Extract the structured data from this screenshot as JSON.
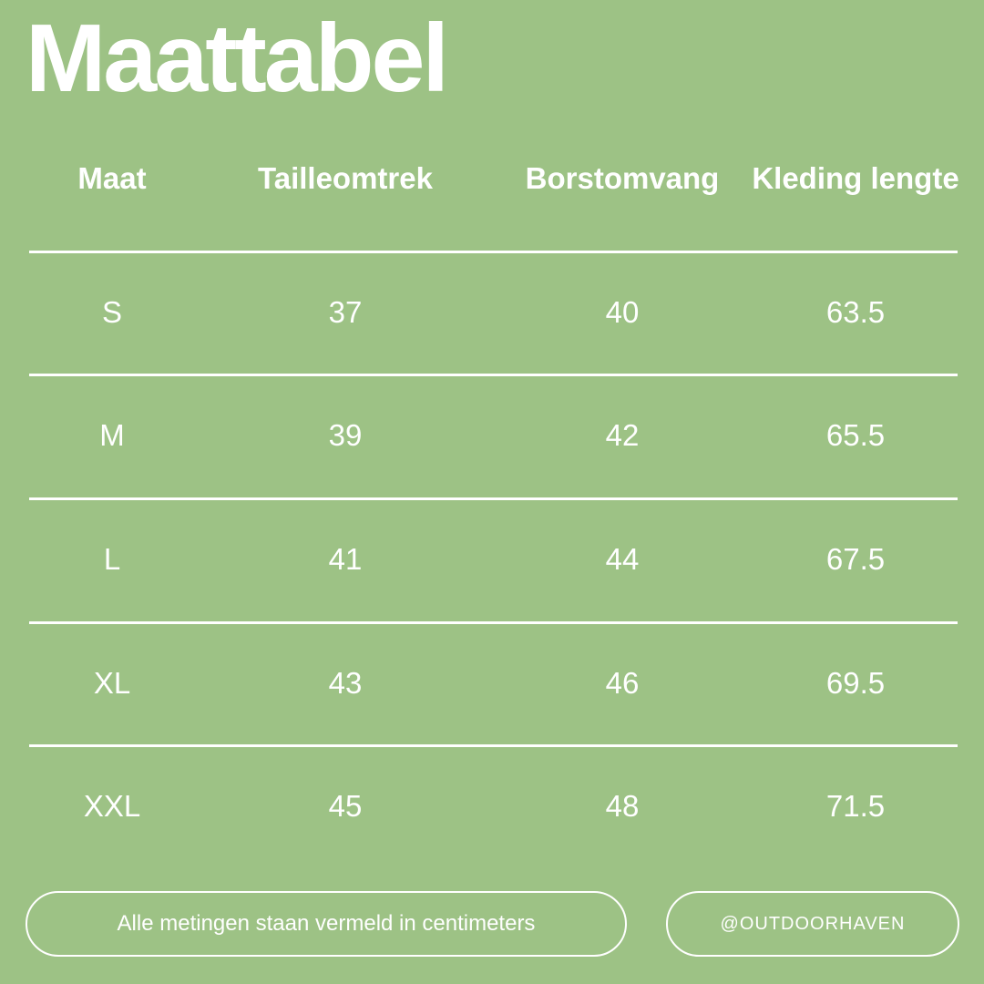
{
  "header": {
    "title": "Maattabel"
  },
  "table": {
    "columns": [
      "Maat",
      "Tailleomtrek",
      "Borstomvang",
      "Kleding lengte"
    ],
    "rows": [
      [
        "S",
        "37",
        "40",
        "63.5"
      ],
      [
        "M",
        "39",
        "42",
        "65.5"
      ],
      [
        "L",
        "41",
        "44",
        "67.5"
      ],
      [
        "XL",
        "43",
        "46",
        "69.5"
      ],
      [
        "XXL",
        "45",
        "48",
        "71.5"
      ]
    ]
  },
  "footer": {
    "note": "Alle metingen staan vermeld in centimeters",
    "handle": "@OUTDOORHAVEN"
  }
}
